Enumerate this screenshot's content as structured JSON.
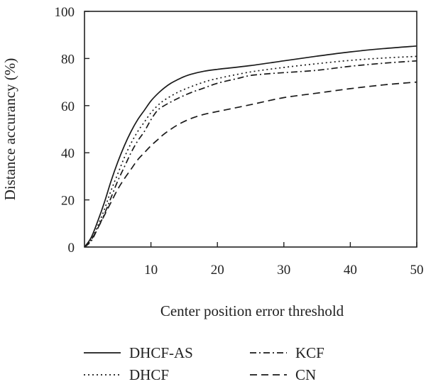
{
  "chart_data": {
    "type": "line",
    "xlabel": "Center position error threshold",
    "ylabel": "Distance accurancy (%)",
    "xlim": [
      0,
      50
    ],
    "ylim": [
      0,
      100
    ],
    "xticks": [
      10,
      20,
      30,
      40,
      50
    ],
    "yticks": [
      0,
      20,
      40,
      60,
      80,
      100
    ],
    "grid": false,
    "legend_position": "bottom",
    "series": [
      {
        "name": "DHCF-AS",
        "dash": "solid",
        "x": [
          0,
          1,
          2,
          3,
          4,
          5,
          6,
          7,
          8,
          9,
          10,
          11,
          12,
          13,
          14,
          15,
          16,
          18,
          20,
          25,
          30,
          35,
          40,
          45,
          50
        ],
        "y": [
          0,
          4,
          11,
          19,
          28,
          36,
          43,
          49,
          54,
          58,
          62,
          65,
          67.5,
          69.5,
          71,
          72.3,
          73.3,
          74.6,
          75.4,
          77,
          79,
          81,
          82.8,
          84.2,
          85.3
        ]
      },
      {
        "name": "DHCF",
        "dash": "dotted",
        "x": [
          0,
          1,
          2,
          3,
          4,
          5,
          6,
          7,
          8,
          9,
          10,
          11,
          12,
          14,
          16,
          18,
          20,
          25,
          30,
          35,
          40,
          45,
          50
        ],
        "y": [
          0,
          3,
          9,
          16,
          24,
          31,
          38,
          44,
          49,
          53,
          57,
          60,
          62.3,
          65.6,
          68,
          70,
          71.5,
          74.3,
          76.2,
          77.8,
          79.2,
          80.2,
          80.9
        ]
      },
      {
        "name": "KCF",
        "dash": "dashdot",
        "x": [
          0,
          1,
          2,
          3,
          4,
          5,
          6,
          7,
          8,
          9,
          10,
          11,
          12,
          14,
          16,
          18,
          20,
          23,
          25,
          28,
          30,
          35,
          40,
          45,
          50
        ],
        "y": [
          0,
          2.5,
          8,
          14,
          21,
          28,
          34,
          40,
          45,
          49,
          54,
          58,
          60,
          63,
          65.5,
          67.5,
          69.5,
          71.5,
          72.8,
          73.6,
          74,
          75,
          76.7,
          78,
          79
        ]
      },
      {
        "name": "CN",
        "dash": "dashed",
        "x": [
          0,
          1,
          2,
          3,
          4,
          5,
          6,
          7,
          8,
          9,
          10,
          11,
          12,
          14,
          16,
          18,
          20,
          25,
          30,
          35,
          40,
          45,
          50
        ],
        "y": [
          0,
          3,
          8,
          13.5,
          19,
          24.5,
          29,
          33,
          37,
          40,
          43,
          45.5,
          48,
          51.8,
          54.5,
          56.3,
          57.5,
          60.4,
          63.4,
          65.3,
          67.2,
          68.8,
          70
        ]
      }
    ]
  }
}
